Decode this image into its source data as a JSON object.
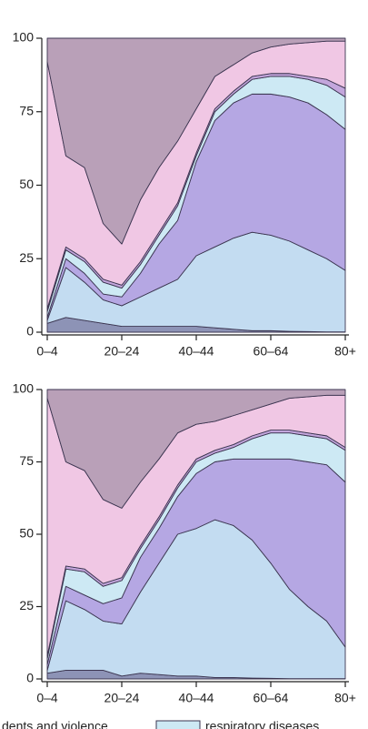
{
  "chart_data": [
    {
      "type": "stacked-area",
      "categories": [
        "0–4",
        null,
        null,
        null,
        "20–24",
        null,
        null,
        null,
        "40–44",
        null,
        null,
        null,
        "60–64",
        null,
        null,
        null,
        "80+"
      ],
      "ylim": [
        0,
        100
      ],
      "yticks": [
        0,
        25,
        50,
        75,
        100
      ],
      "series": [
        {
          "color": "#8d93b6",
          "values": [
            3,
            5,
            4,
            3,
            2,
            2,
            2,
            2,
            2,
            1.5,
            1,
            0.5,
            0.5,
            0.3,
            0.2,
            0.1,
            0.1
          ]
        },
        {
          "color": "#c3dcf1",
          "values": [
            1,
            17,
            13,
            8,
            7,
            10,
            13,
            16,
            24,
            27.5,
            31,
            33.5,
            32.5,
            30.7,
            27.8,
            24.9,
            20.9
          ]
        },
        {
          "color": "#b5a7e3",
          "values": [
            1,
            3,
            3,
            2,
            3,
            8,
            15,
            20,
            32,
            43,
            46,
            47,
            48,
            49,
            50,
            49,
            48
          ]
        },
        {
          "color": "#cde9f4",
          "values": [
            2,
            3,
            4,
            4,
            3,
            3,
            3,
            5,
            2,
            3,
            3,
            5,
            6,
            7,
            8,
            10,
            11
          ]
        },
        {
          "color": "#c3a6dc",
          "values": [
            1,
            1,
            1,
            1,
            1,
            1,
            1,
            1,
            1,
            1,
            1,
            1,
            1,
            1,
            1,
            2,
            3
          ]
        },
        {
          "color": "#f0c7e4",
          "values": [
            84,
            31,
            31,
            19,
            14,
            21,
            22,
            21,
            15,
            11,
            9,
            8,
            9,
            10,
            11.5,
            13,
            16
          ]
        },
        {
          "color": "#b9a0b8",
          "values": [
            8,
            40,
            44,
            63,
            70,
            55,
            44,
            35,
            24,
            13,
            9,
            5,
            3,
            2,
            1.5,
            1,
            1
          ]
        }
      ]
    },
    {
      "type": "stacked-area",
      "categories": [
        "0–4",
        null,
        null,
        null,
        "20–24",
        null,
        null,
        null,
        "40–44",
        null,
        null,
        null,
        "60–64",
        null,
        null,
        null,
        "80+"
      ],
      "ylim": [
        0,
        100
      ],
      "yticks": [
        0,
        25,
        50,
        75,
        100
      ],
      "series": [
        {
          "color": "#8d93b6",
          "values": [
            2,
            3,
            3,
            3,
            1,
            2,
            1.5,
            1,
            1,
            0.5,
            0.5,
            0.3,
            0.2,
            0.1,
            0.1,
            0.1,
            0.1
          ]
        },
        {
          "color": "#c3dcf1",
          "values": [
            1,
            24,
            21,
            17,
            18,
            28,
            38.5,
            49,
            51,
            54.5,
            52.5,
            47.7,
            39.8,
            30.9,
            24.9,
            19.9,
            10.9
          ]
        },
        {
          "color": "#b5a7e3",
          "values": [
            2,
            5,
            5,
            6,
            9,
            12,
            12,
            13,
            19,
            20,
            23,
            28,
            36,
            45,
            50,
            54,
            57
          ]
        },
        {
          "name": "respiratory diseases",
          "color": "#cde9f4",
          "values": [
            2,
            6,
            8,
            6,
            6,
            3,
            3,
            3,
            4,
            3,
            4,
            7,
            9,
            9,
            9,
            9,
            11
          ]
        },
        {
          "color": "#c3a6dc",
          "values": [
            1,
            1,
            1,
            1,
            1,
            1,
            1,
            1,
            1,
            1,
            1,
            1,
            1,
            1,
            1,
            1,
            1
          ]
        },
        {
          "name": "dents and violence",
          "color": "#f0c7e4",
          "values": [
            89,
            36,
            34,
            29,
            24,
            22,
            20,
            18,
            12,
            10,
            10,
            9,
            9,
            11,
            12.5,
            14,
            18
          ]
        },
        {
          "color": "#b9a0b8",
          "values": [
            3,
            25,
            28,
            38,
            41,
            32,
            24,
            15,
            12,
            11,
            9,
            7,
            5,
            3,
            2.5,
            2,
            2
          ]
        }
      ]
    }
  ]
}
